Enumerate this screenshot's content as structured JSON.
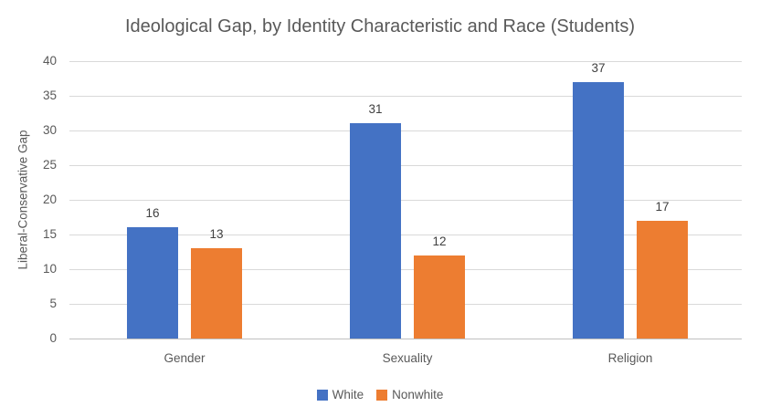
{
  "chart_data": {
    "type": "bar",
    "title": "Ideological Gap, by Identity Characteristic and Race (Students)",
    "xlabel": "",
    "ylabel": "Liberal-Conservative Gap",
    "categories": [
      "Gender",
      "Sexuality",
      "Religion"
    ],
    "series": [
      {
        "name": "White",
        "color": "#4472C4",
        "values": [
          16,
          31,
          37
        ],
        "data_labels": [
          "16",
          "31",
          "37"
        ]
      },
      {
        "name": "Nonwhite",
        "color": "#ED7D31",
        "values": [
          13,
          12,
          17
        ],
        "data_labels": [
          "13",
          "12",
          "17"
        ]
      }
    ],
    "ylim": [
      0,
      40
    ],
    "yticks": [
      0,
      5,
      10,
      15,
      20,
      25,
      30,
      35,
      40
    ],
    "grid": true,
    "legend_position": "bottom"
  },
  "theme": {
    "background": "#FFFFFF",
    "title_color": "#595959",
    "axis_text_color": "#595959",
    "data_label_color": "#404040",
    "gridline_color": "#D9D9D9",
    "axis_line_color": "#BFBFBF",
    "series_colors": {
      "white": "#4472C4",
      "nonwhite": "#ED7D31"
    }
  }
}
